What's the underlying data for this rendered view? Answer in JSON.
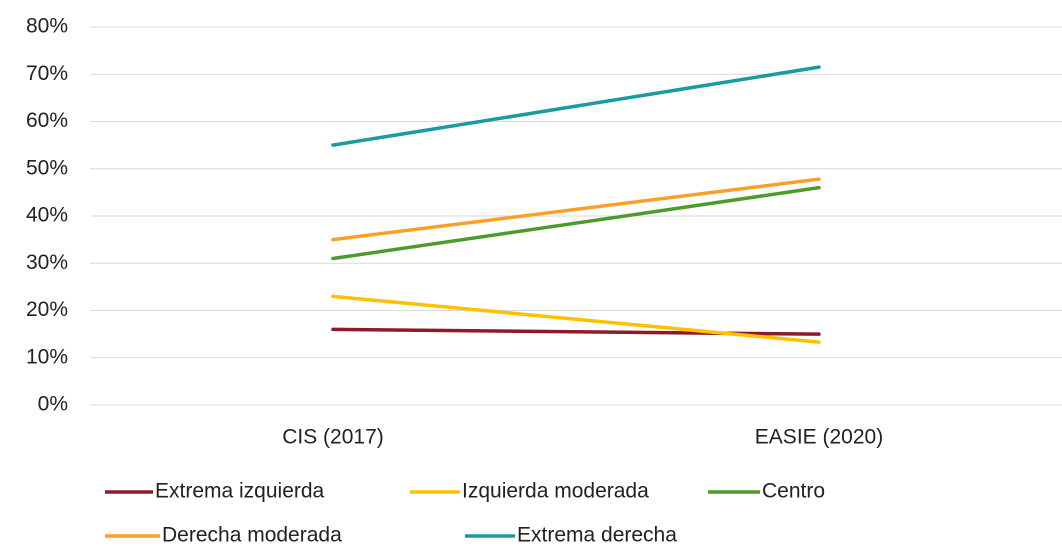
{
  "chart_data": {
    "type": "line",
    "categories": [
      "CIS (2017)",
      "EASIE (2020)"
    ],
    "series": [
      {
        "name": "Extrema izquierda",
        "color": "#8b1a2b",
        "values": [
          16,
          15
        ]
      },
      {
        "name": "Izquierda moderada",
        "color": "#ffc000",
        "values": [
          23,
          13.3
        ]
      },
      {
        "name": "Centro",
        "color": "#4e9a2f",
        "values": [
          31,
          46
        ]
      },
      {
        "name": "Derecha moderada",
        "color": "#f7a12a",
        "values": [
          35,
          47.8
        ]
      },
      {
        "name": "Extrema derecha",
        "color": "#1a9aa1",
        "values": [
          55,
          71.5
        ]
      }
    ],
    "ylim": [
      0,
      80
    ],
    "yticks": [
      {
        "value": 0,
        "label": "0%"
      },
      {
        "value": 10,
        "label": "10%"
      },
      {
        "value": 20,
        "label": "20%"
      },
      {
        "value": 30,
        "label": "30%"
      },
      {
        "value": 40,
        "label": "40%"
      },
      {
        "value": 50,
        "label": "50%"
      },
      {
        "value": 60,
        "label": "60%"
      },
      {
        "value": 70,
        "label": "70%"
      },
      {
        "value": 80,
        "label": "80%"
      }
    ],
    "grid": true
  }
}
